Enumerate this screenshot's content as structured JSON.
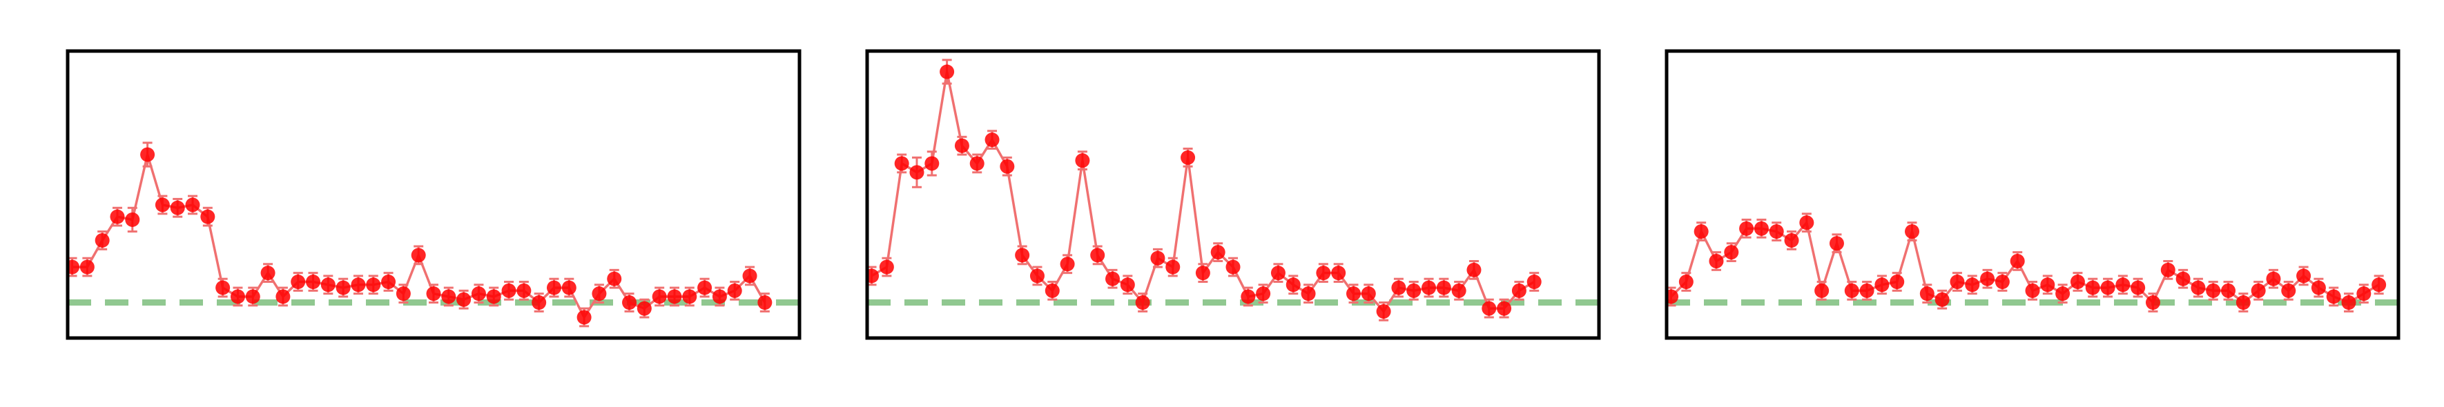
{
  "colors": {
    "series": "#ff0000",
    "series_line": "#f07070",
    "errorbar": "#f07070",
    "baseline": "#90c890",
    "frame": "#000000"
  },
  "chart_data": [
    {
      "type": "line",
      "title": "",
      "xlabel": "",
      "ylabel": "",
      "grid": false,
      "ticks_visible": false,
      "xlim": [
        -0.3,
        48.3
      ],
      "ylim": [
        -0.12,
        0.85
      ],
      "baseline_y": 0.0,
      "series": [
        {
          "values": [
            0.12,
            0.12,
            0.21,
            0.29,
            0.28,
            0.5,
            0.33,
            0.32,
            0.33,
            0.29,
            0.05,
            0.02,
            0.02,
            0.1,
            0.02,
            0.07,
            0.07,
            0.06,
            0.05,
            0.06,
            0.06,
            0.07,
            0.03,
            0.16,
            0.03,
            0.02,
            0.01,
            0.03,
            0.02,
            0.04,
            0.04,
            0.0,
            0.05,
            0.05,
            -0.05,
            0.03,
            0.08,
            0.0,
            -0.02,
            0.02,
            0.02,
            0.02,
            0.05,
            0.02,
            0.04,
            0.09,
            0.0
          ],
          "errors": [
            0.03,
            0.03,
            0.03,
            0.03,
            0.04,
            0.04,
            0.03,
            0.03,
            0.03,
            0.03,
            0.03,
            0.03,
            0.03,
            0.03,
            0.03,
            0.03,
            0.03,
            0.03,
            0.03,
            0.03,
            0.03,
            0.03,
            0.03,
            0.03,
            0.03,
            0.03,
            0.03,
            0.03,
            0.03,
            0.03,
            0.03,
            0.03,
            0.03,
            0.03,
            0.03,
            0.03,
            0.03,
            0.03,
            0.03,
            0.03,
            0.03,
            0.03,
            0.03,
            0.03,
            0.03,
            0.03,
            0.03
          ]
        }
      ]
    },
    {
      "type": "line",
      "title": "",
      "xlabel": "",
      "ylabel": "",
      "grid": false,
      "ticks_visible": false,
      "xlim": [
        -0.3,
        48.3
      ],
      "ylim": [
        -0.12,
        0.85
      ],
      "baseline_y": 0.0,
      "series": [
        {
          "values": [
            0.09,
            0.12,
            0.47,
            0.44,
            0.47,
            0.78,
            0.53,
            0.47,
            0.55,
            0.46,
            0.16,
            0.09,
            0.04,
            0.13,
            0.48,
            0.16,
            0.08,
            0.06,
            0.0,
            0.15,
            0.12,
            0.49,
            0.1,
            0.17,
            0.12,
            0.02,
            0.03,
            0.1,
            0.06,
            0.03,
            0.1,
            0.1,
            0.03,
            0.03,
            -0.03,
            0.05,
            0.04,
            0.05,
            0.05,
            0.04,
            0.11,
            -0.02,
            -0.02,
            0.04,
            0.07
          ],
          "errors": [
            0.03,
            0.03,
            0.03,
            0.05,
            0.04,
            0.04,
            0.03,
            0.03,
            0.03,
            0.03,
            0.03,
            0.03,
            0.03,
            0.03,
            0.03,
            0.03,
            0.03,
            0.03,
            0.03,
            0.03,
            0.03,
            0.03,
            0.03,
            0.03,
            0.03,
            0.03,
            0.03,
            0.03,
            0.03,
            0.03,
            0.03,
            0.03,
            0.03,
            0.03,
            0.03,
            0.03,
            0.03,
            0.03,
            0.03,
            0.03,
            0.03,
            0.03,
            0.03,
            0.03,
            0.03
          ]
        }
      ]
    },
    {
      "type": "line",
      "title": "",
      "xlabel": "",
      "ylabel": "",
      "grid": false,
      "ticks_visible": false,
      "xlim": [
        -0.3,
        48.3
      ],
      "ylim": [
        -0.12,
        0.85
      ],
      "baseline_y": 0.0,
      "series": [
        {
          "values": [
            0.02,
            0.07,
            0.24,
            0.14,
            0.17,
            0.25,
            0.25,
            0.24,
            0.21,
            0.27,
            0.04,
            0.2,
            0.04,
            0.04,
            0.06,
            0.07,
            0.24,
            0.03,
            0.01,
            0.07,
            0.06,
            0.08,
            0.07,
            0.14,
            0.04,
            0.06,
            0.03,
            0.07,
            0.05,
            0.05,
            0.06,
            0.05,
            0.0,
            0.11,
            0.08,
            0.05,
            0.04,
            0.04,
            0.0,
            0.04,
            0.08,
            0.04,
            0.09,
            0.05,
            0.02,
            0.0,
            0.03,
            0.06
          ],
          "errors": [
            0.03,
            0.03,
            0.03,
            0.03,
            0.03,
            0.03,
            0.03,
            0.03,
            0.03,
            0.03,
            0.03,
            0.03,
            0.03,
            0.03,
            0.03,
            0.03,
            0.03,
            0.03,
            0.03,
            0.03,
            0.03,
            0.03,
            0.03,
            0.03,
            0.03,
            0.03,
            0.03,
            0.03,
            0.03,
            0.03,
            0.03,
            0.03,
            0.03,
            0.03,
            0.03,
            0.03,
            0.03,
            0.03,
            0.03,
            0.03,
            0.03,
            0.03,
            0.03,
            0.03,
            0.03,
            0.03,
            0.03,
            0.03
          ]
        }
      ]
    }
  ]
}
